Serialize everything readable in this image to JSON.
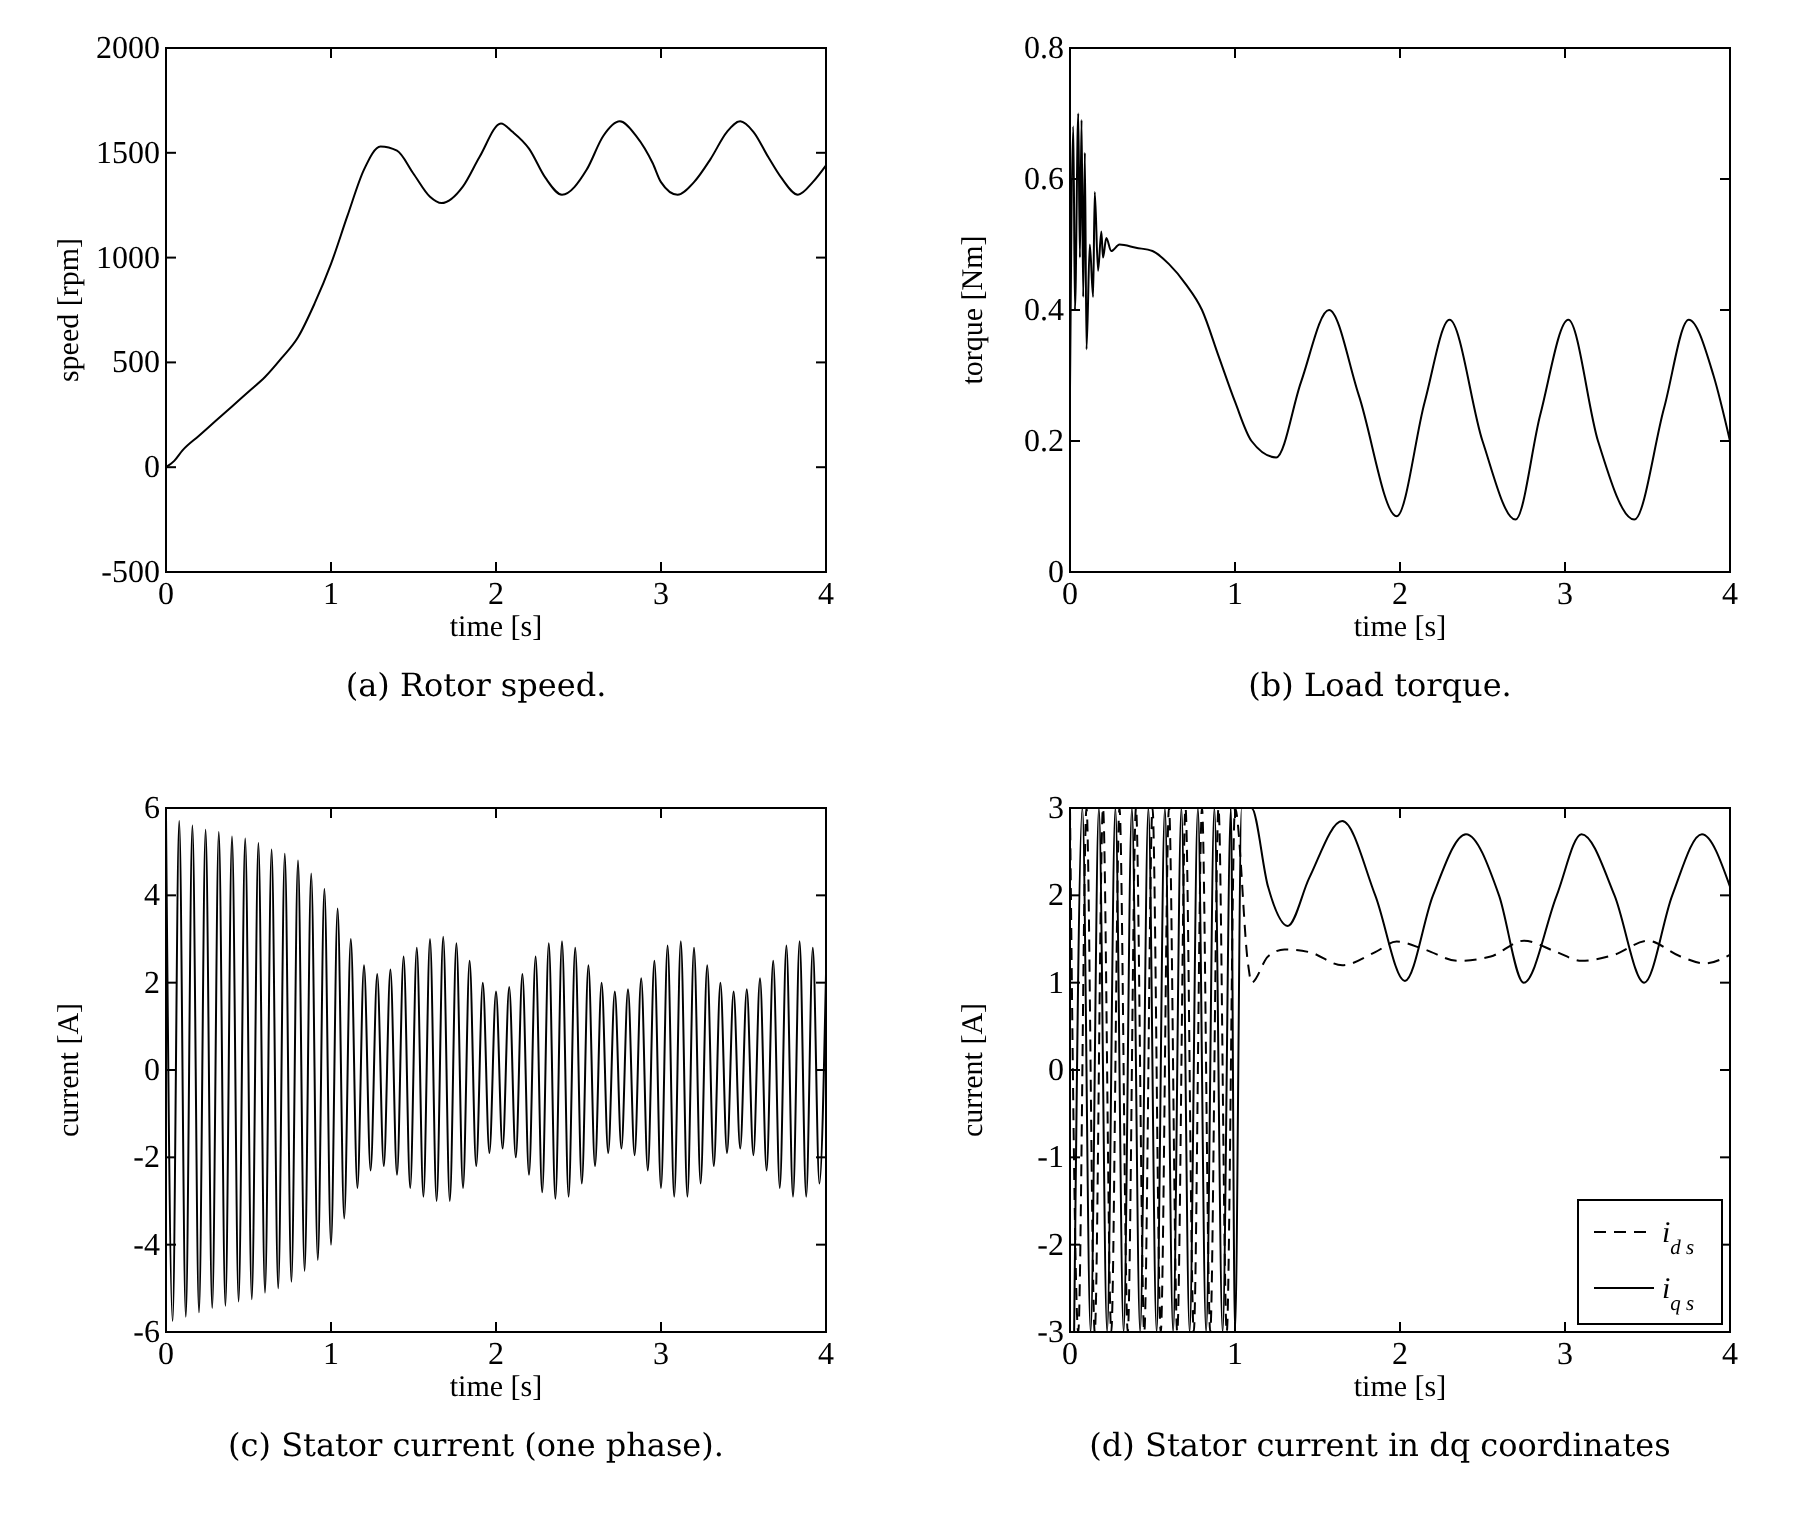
{
  "chart_data": [
    {
      "type": "line",
      "title": "(a) Rotor speed.",
      "xlabel": "time [s]",
      "ylabel": "speed [rpm]",
      "xlim": [
        0,
        4
      ],
      "ylim": [
        -500,
        2000
      ],
      "xticks": [
        0,
        1,
        2,
        3,
        4
      ],
      "yticks": [
        -500,
        0,
        500,
        1000,
        1500,
        2000
      ],
      "series": [
        {
          "color": "#000000",
          "line_style": "solid",
          "x": [
            0,
            0.05,
            0.1,
            0.2,
            0.3,
            0.4,
            0.5,
            0.6,
            0.7,
            0.8,
            0.9,
            1.0,
            1.1,
            1.2,
            1.3,
            1.4,
            1.5,
            1.6,
            1.67,
            1.8,
            1.9,
            2.03,
            2.1,
            2.2,
            2.3,
            2.4,
            2.55,
            2.65,
            2.75,
            2.85,
            2.95,
            3.0,
            3.1,
            3.2,
            3.3,
            3.4,
            3.48,
            3.56,
            3.65,
            3.73,
            3.83,
            3.92,
            4.0
          ],
          "values": [
            0,
            30,
            80,
            150,
            220,
            290,
            360,
            430,
            520,
            620,
            780,
            970,
            1200,
            1420,
            1530,
            1510,
            1400,
            1290,
            1260,
            1340,
            1480,
            1640,
            1600,
            1520,
            1380,
            1300,
            1420,
            1580,
            1650,
            1580,
            1450,
            1360,
            1300,
            1360,
            1470,
            1600,
            1650,
            1600,
            1480,
            1380,
            1300,
            1360,
            1440
          ]
        }
      ]
    },
    {
      "type": "line",
      "title": "(b) Load torque.",
      "xlabel": "time [s]",
      "ylabel": "torque [Nm]",
      "xlim": [
        0,
        4
      ],
      "ylim": [
        0,
        0.8
      ],
      "xticks": [
        0,
        1,
        2,
        3,
        4
      ],
      "yticks": [
        0,
        0.2,
        0.4,
        0.6,
        0.8
      ],
      "series": [
        {
          "color": "#000000",
          "line_style": "solid",
          "x": [
            0,
            0.02,
            0.03,
            0.05,
            0.06,
            0.07,
            0.08,
            0.09,
            0.1,
            0.12,
            0.14,
            0.15,
            0.17,
            0.19,
            0.2,
            0.22,
            0.25,
            0.3,
            0.4,
            0.5,
            0.6,
            0.7,
            0.8,
            0.9,
            1.0,
            1.1,
            1.25,
            1.4,
            1.57,
            1.75,
            1.98,
            2.15,
            2.3,
            2.5,
            2.7,
            2.85,
            3.02,
            3.2,
            3.42,
            3.6,
            3.75,
            3.9,
            4.0
          ],
          "values": [
            0.28,
            0.68,
            0.4,
            0.7,
            0.48,
            0.69,
            0.42,
            0.64,
            0.34,
            0.5,
            0.42,
            0.58,
            0.46,
            0.52,
            0.48,
            0.51,
            0.49,
            0.5,
            0.495,
            0.49,
            0.47,
            0.44,
            0.4,
            0.33,
            0.26,
            0.2,
            0.175,
            0.29,
            0.4,
            0.27,
            0.085,
            0.26,
            0.385,
            0.2,
            0.08,
            0.24,
            0.385,
            0.2,
            0.08,
            0.25,
            0.385,
            0.3,
            0.2
          ]
        }
      ]
    },
    {
      "type": "line",
      "title": "(c) Stator current (one phase).",
      "xlabel": "time [s]",
      "ylabel": "current [A]",
      "xlim": [
        0,
        4
      ],
      "ylim": [
        -6,
        6
      ],
      "xticks": [
        0,
        1,
        2,
        3,
        4
      ],
      "yticks": [
        -6,
        -4,
        -2,
        0,
        2,
        4,
        6
      ],
      "series": [
        {
          "color": "#000000",
          "line_style": "solid",
          "x": [
            0,
            0.04,
            0.08,
            0.12,
            0.16,
            0.2,
            0.24,
            0.28,
            0.32,
            0.36,
            0.4,
            0.44,
            0.48,
            0.52,
            0.56,
            0.6,
            0.64,
            0.68,
            0.72,
            0.76,
            0.8,
            0.84,
            0.88,
            0.92,
            0.96,
            1.0,
            1.04,
            1.08,
            1.12,
            1.16,
            1.2,
            1.24,
            1.28,
            1.32,
            1.36,
            1.4,
            1.44,
            1.48,
            1.52,
            1.56,
            1.6,
            1.64,
            1.68,
            1.72,
            1.76,
            1.8,
            1.84,
            1.88,
            1.92,
            1.96,
            2.0,
            2.04,
            2.08,
            2.12,
            2.16,
            2.2,
            2.24,
            2.28,
            2.32,
            2.36,
            2.4,
            2.44,
            2.48,
            2.52,
            2.56,
            2.6,
            2.64,
            2.68,
            2.72,
            2.76,
            2.8,
            2.84,
            2.88,
            2.92,
            2.96,
            3.0,
            3.04,
            3.08,
            3.12,
            3.16,
            3.2,
            3.24,
            3.28,
            3.32,
            3.36,
            3.4,
            3.44,
            3.48,
            3.52,
            3.56,
            3.6,
            3.64,
            3.68,
            3.72,
            3.76,
            3.8,
            3.84,
            3.88,
            3.92,
            3.96,
            4.0
          ],
          "values": [
            5.8,
            -5.75,
            5.7,
            -5.65,
            5.6,
            -5.55,
            5.5,
            -5.45,
            5.45,
            -5.4,
            5.35,
            -5.3,
            5.3,
            -5.25,
            5.2,
            -5.1,
            5.05,
            -5.0,
            4.95,
            -4.85,
            4.8,
            -4.6,
            4.5,
            -4.35,
            4.15,
            -4.0,
            3.7,
            -3.4,
            3.0,
            -2.7,
            2.4,
            -2.3,
            2.2,
            -2.2,
            2.3,
            -2.4,
            2.6,
            -2.7,
            2.8,
            -2.9,
            3.0,
            -3.0,
            3.05,
            -3.0,
            2.9,
            -2.7,
            2.5,
            -2.2,
            2.0,
            -1.9,
            1.8,
            -1.8,
            1.9,
            -2.0,
            2.2,
            -2.4,
            2.6,
            -2.8,
            2.9,
            -2.95,
            2.95,
            -2.9,
            2.8,
            -2.6,
            2.4,
            -2.2,
            2.0,
            -1.9,
            1.8,
            -1.8,
            1.85,
            -1.95,
            2.1,
            -2.3,
            2.5,
            -2.7,
            2.85,
            -2.9,
            2.95,
            -2.9,
            2.8,
            -2.6,
            2.4,
            -2.2,
            2.0,
            -1.9,
            1.8,
            -1.8,
            1.85,
            -1.95,
            2.1,
            -2.3,
            2.5,
            -2.7,
            2.85,
            -2.9,
            2.95,
            -2.9,
            2.8,
            -2.6,
            2.2
          ]
        }
      ]
    },
    {
      "type": "line",
      "title": "(d) Stator current in dq coordinates",
      "xlabel": "time [s]",
      "ylabel": "current [A]",
      "xlim": [
        0,
        4
      ],
      "ylim": [
        -3,
        3
      ],
      "xticks": [
        0,
        1,
        2,
        3,
        4
      ],
      "yticks": [
        -3,
        -2,
        -1,
        0,
        1,
        2,
        3
      ],
      "legend": "bottom right",
      "series": [
        {
          "name": "i$_{d s}$",
          "color": "#000000",
          "line_style": "dashed",
          "x": [
            0,
            0.05,
            0.1,
            0.15,
            0.2,
            0.25,
            0.3,
            0.35,
            0.4,
            0.45,
            0.5,
            0.55,
            0.6,
            0.65,
            0.7,
            0.75,
            0.8,
            0.85,
            0.9,
            0.95,
            1.0,
            1.08,
            1.1,
            1.2,
            1.3,
            1.45,
            1.65,
            1.85,
            1.98,
            2.15,
            2.35,
            2.55,
            2.75,
            2.95,
            3.1,
            3.3,
            3.5,
            3.7,
            3.85,
            4.0
          ],
          "values": [
            3,
            -3,
            3,
            -3,
            3,
            -3,
            3,
            -3,
            3,
            -3,
            3,
            -3,
            3,
            -3,
            3,
            -3,
            3,
            -3,
            3,
            -3,
            3,
            1.2,
            1.0,
            1.3,
            1.38,
            1.35,
            1.2,
            1.35,
            1.47,
            1.38,
            1.25,
            1.3,
            1.48,
            1.35,
            1.25,
            1.32,
            1.48,
            1.3,
            1.22,
            1.32
          ]
        },
        {
          "name": "i$_{q s}$",
          "color": "#000000",
          "line_style": "solid",
          "x": [
            0.025,
            0.075,
            0.125,
            0.175,
            0.225,
            0.275,
            0.325,
            0.375,
            0.425,
            0.475,
            0.525,
            0.575,
            0.625,
            0.675,
            0.725,
            0.775,
            0.825,
            0.875,
            0.925,
            0.975,
            1.0,
            1.04,
            1.1,
            1.2,
            1.32,
            1.45,
            1.65,
            1.85,
            2.03,
            2.2,
            2.4,
            2.6,
            2.75,
            2.95,
            3.1,
            3.3,
            3.48,
            3.65,
            3.83,
            4.0
          ],
          "values": [
            -3,
            3,
            -3,
            3,
            -3,
            3,
            -3,
            3,
            -3,
            3,
            -3,
            3,
            -3,
            3,
            -3,
            3,
            -3,
            3,
            -3,
            3,
            -3,
            3,
            3,
            2.1,
            1.65,
            2.2,
            2.85,
            2.0,
            1.02,
            2.0,
            2.7,
            2.0,
            1.0,
            2.0,
            2.7,
            2.0,
            1.0,
            2.0,
            2.7,
            2.1
          ]
        }
      ]
    }
  ]
}
